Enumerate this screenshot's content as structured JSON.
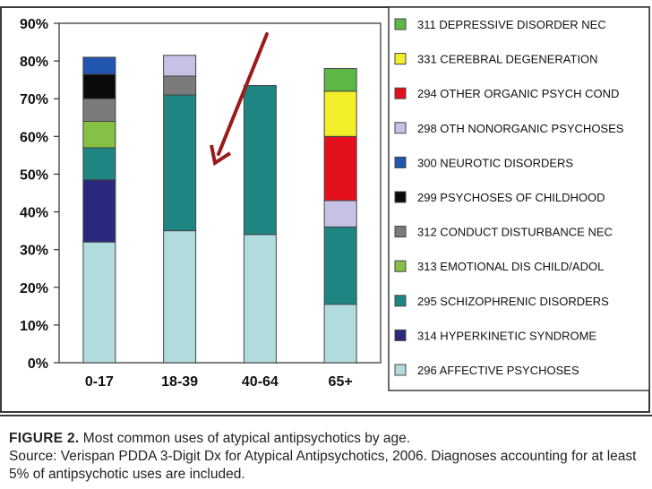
{
  "chart_data": {
    "type": "bar",
    "stacked": true,
    "title": "",
    "xlabel": "",
    "ylabel": "",
    "ylim": [
      0,
      90
    ],
    "yticks": [
      "0%",
      "10%",
      "20%",
      "30%",
      "40%",
      "50%",
      "60%",
      "70%",
      "80%",
      "90%"
    ],
    "categories": [
      "0-17",
      "18-39",
      "40-64",
      "65+"
    ],
    "series": [
      {
        "name": "296 AFFECTIVE PSYCHOSES",
        "color": "#b0dce0",
        "values": [
          32,
          35,
          34,
          15.5
        ]
      },
      {
        "name": "314 HYPERKINETIC SYNDROME",
        "color": "#28287c",
        "values": [
          16.5,
          0,
          0,
          0
        ]
      },
      {
        "name": "295 SCHIZOPHRENIC DISORDERS",
        "color": "#1e8582",
        "values": [
          8.5,
          36,
          39.5,
          20.5
        ]
      },
      {
        "name": "313 EMOTIONAL DIS CHILD/ADOL",
        "color": "#86c044",
        "values": [
          7,
          0,
          0,
          0
        ]
      },
      {
        "name": "312 CONDUCT DISTURBANCE NEC",
        "color": "#7b7b7b",
        "values": [
          6,
          5,
          0,
          0
        ]
      },
      {
        "name": "299 PSYCHOSES OF CHILDHOOD",
        "color": "#0a0a0a",
        "values": [
          6.5,
          0,
          0,
          0
        ]
      },
      {
        "name": "300 NEUROTIC DISORDERS",
        "color": "#2255b0",
        "values": [
          4.5,
          0,
          0,
          0
        ]
      },
      {
        "name": "298 OTH NONORGANIC PSYCHOSES",
        "color": "#c6c2e6",
        "values": [
          0,
          5.5,
          0,
          7
        ]
      },
      {
        "name": "294 OTHER ORGANIC PSYCH COND",
        "color": "#e5101e",
        "values": [
          0,
          0,
          0,
          17
        ]
      },
      {
        "name": "331 CEREBRAL DEGENERATION",
        "color": "#f2ef2a",
        "values": [
          0,
          0,
          0,
          12
        ]
      },
      {
        "name": "311 DEPRESSIVE DISORDER NEC",
        "color": "#5eb846",
        "values": [
          0,
          0,
          0,
          6
        ]
      }
    ],
    "legend": {
      "placement": "right",
      "order": [
        "311 DEPRESSIVE DISORDER NEC",
        "331 CEREBRAL DEGENERATION",
        "294 OTHER ORGANIC PSYCH COND",
        "298 OTH NONORGANIC PSYCHOSES",
        "300 NEUROTIC DISORDERS",
        "299 PSYCHOSES OF CHILDHOOD",
        "312 CONDUCT DISTURBANCE NEC",
        "313 EMOTIONAL DIS CHILD/ADOL",
        "295 SCHIZOPHRENIC DISORDERS",
        "314 HYPERKINETIC SYNDROME",
        "296 AFFECTIVE PSYCHOSES"
      ]
    },
    "annotation": {
      "type": "arrow",
      "color": "#9b1a1a",
      "description": "arrow pointing toward 18-39 schizophrenic bar"
    }
  },
  "caption": {
    "label": "FIGURE 2.",
    "text": " Most common uses of atypical antipsychotics by age.",
    "source": "Source: Verispan PDDA 3-Digit Dx for Atypical Antipsychotics, 2006. Diagnoses accounting for at least 5% of antipsychotic uses are included."
  }
}
